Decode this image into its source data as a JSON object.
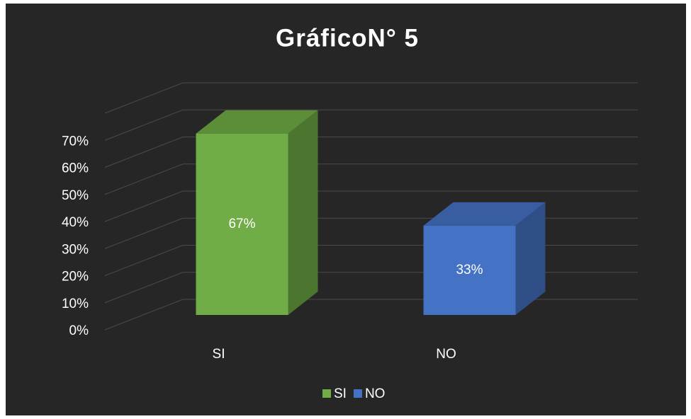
{
  "chart_data": {
    "type": "bar3d",
    "title": "GráficoN° 5",
    "categories": [
      "SI",
      "NO"
    ],
    "values": [
      67,
      33
    ],
    "value_labels": [
      "67%",
      "33%"
    ],
    "colors": [
      "#70ad47",
      "#4472c4"
    ],
    "ylim": [
      0,
      80
    ],
    "yticks": [
      {
        "value": 0,
        "label": "0%"
      },
      {
        "value": 10,
        "label": "10%"
      },
      {
        "value": 20,
        "label": "20%"
      },
      {
        "value": 30,
        "label": "30%"
      },
      {
        "value": 40,
        "label": "40%"
      },
      {
        "value": 50,
        "label": "50%"
      },
      {
        "value": 60,
        "label": "60%"
      },
      {
        "value": 70,
        "label": "70%"
      }
    ],
    "grid": true,
    "legend": "bottom"
  }
}
